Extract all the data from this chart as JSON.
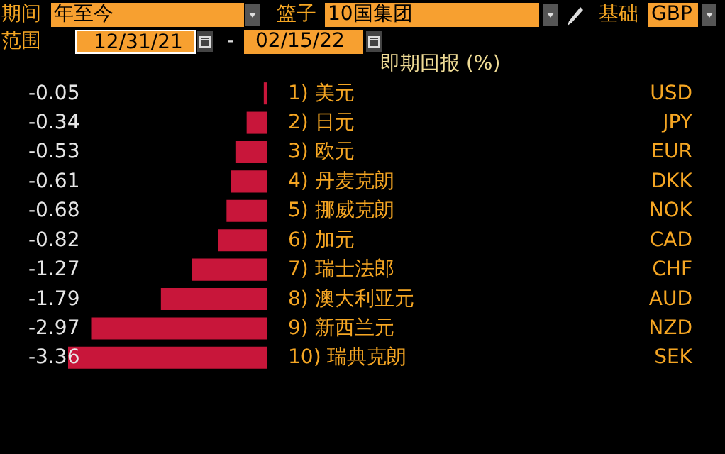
{
  "chart_data": {
    "type": "bar",
    "orientation": "horizontal",
    "title": "即期回报 (%)",
    "categories": [
      "1) 美元",
      "2) 日元",
      "3) 欧元",
      "4) 丹麦克朗",
      "5) 挪威克朗",
      "6) 加元",
      "7) 瑞士法郎",
      "8) 澳大利亚元",
      "9) 新西兰元",
      "10) 瑞典克朗"
    ],
    "y2_categories": [
      "USD",
      "JPY",
      "EUR",
      "DKK",
      "NOK",
      "CAD",
      "CHF",
      "AUD",
      "NZD",
      "SEK"
    ],
    "values": [
      -0.05,
      -0.34,
      -0.53,
      -0.61,
      -0.68,
      -0.82,
      -1.27,
      -1.79,
      -2.97,
      -3.36
    ],
    "color": "#c8163a",
    "data_labels": true,
    "annotations": [
      "期间",
      "年至今",
      "篮子",
      "10国集团",
      "基础",
      "GBP",
      "范围",
      "12/31/21",
      "-",
      "02/15/22"
    ]
  }
}
